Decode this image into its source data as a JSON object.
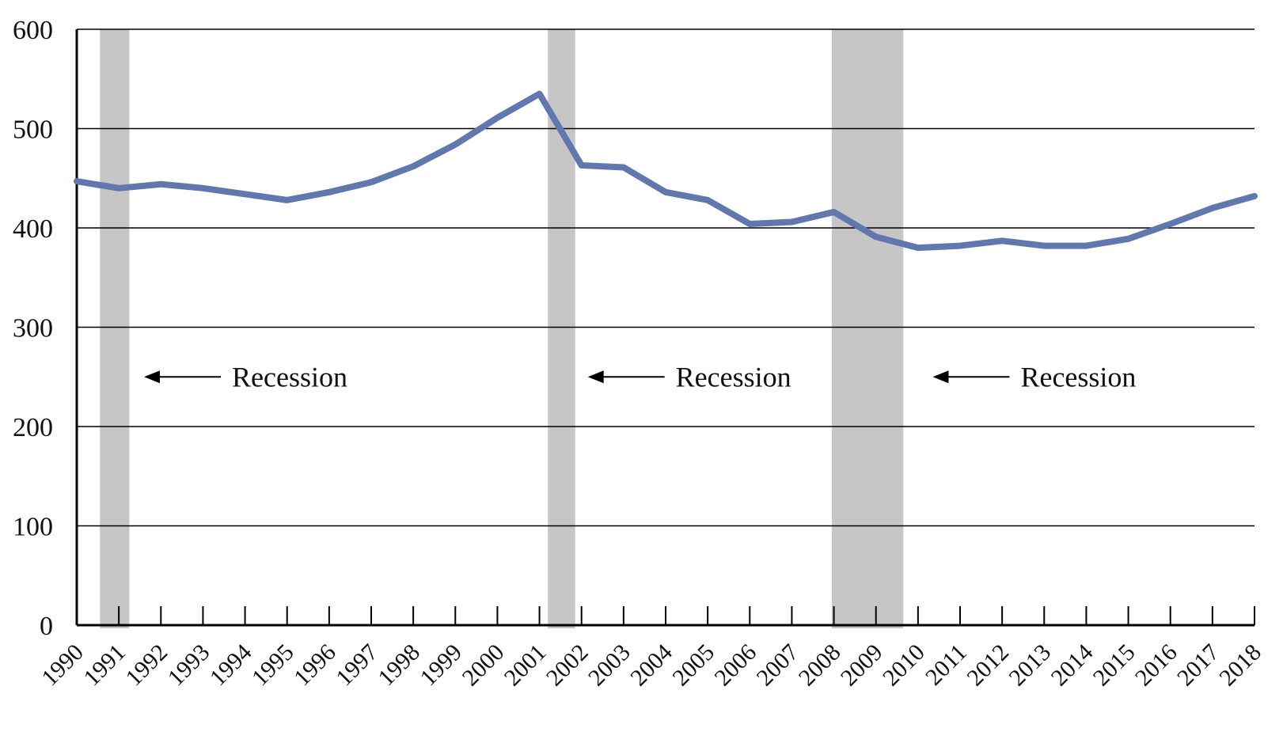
{
  "chart_data": {
    "type": "line",
    "title": "",
    "xlabel": "",
    "ylabel": "",
    "x": [
      "1990",
      "1991",
      "1992",
      "1993",
      "1994",
      "1995",
      "1996",
      "1997",
      "1998",
      "1999",
      "2000",
      "2001",
      "2002",
      "2003",
      "2004",
      "2005",
      "2006",
      "2007",
      "2008",
      "2009",
      "2010",
      "2011",
      "2012",
      "2013",
      "2014",
      "2015",
      "2016",
      "2017",
      "2018"
    ],
    "series": [
      {
        "values": [
          447,
          440,
          444,
          440,
          434,
          428,
          436,
          446,
          462,
          484,
          511,
          535,
          463,
          461,
          436,
          428,
          404,
          406,
          416,
          391,
          380,
          382,
          387,
          382,
          382,
          389,
          404,
          420,
          432
        ]
      }
    ],
    "ylim": [
      0,
      600
    ],
    "yticks": [
      0,
      100,
      200,
      300,
      400,
      500,
      600
    ],
    "grid": "horizontal",
    "line_color": "#6078ae",
    "recession_color": "#c6c6c6",
    "recessions": [
      {
        "start": 1990.55,
        "end": 1991.25
      },
      {
        "start": 2001.2,
        "end": 2001.85
      },
      {
        "start": 2007.95,
        "end": 2009.65
      }
    ],
    "annotations": [
      {
        "text": "Recession",
        "arrow_to_x": 1991.6,
        "y": 250
      },
      {
        "text": "Recession",
        "arrow_to_x": 2002.15,
        "y": 250
      },
      {
        "text": "Recession",
        "arrow_to_x": 2010.35,
        "y": 250
      }
    ]
  }
}
